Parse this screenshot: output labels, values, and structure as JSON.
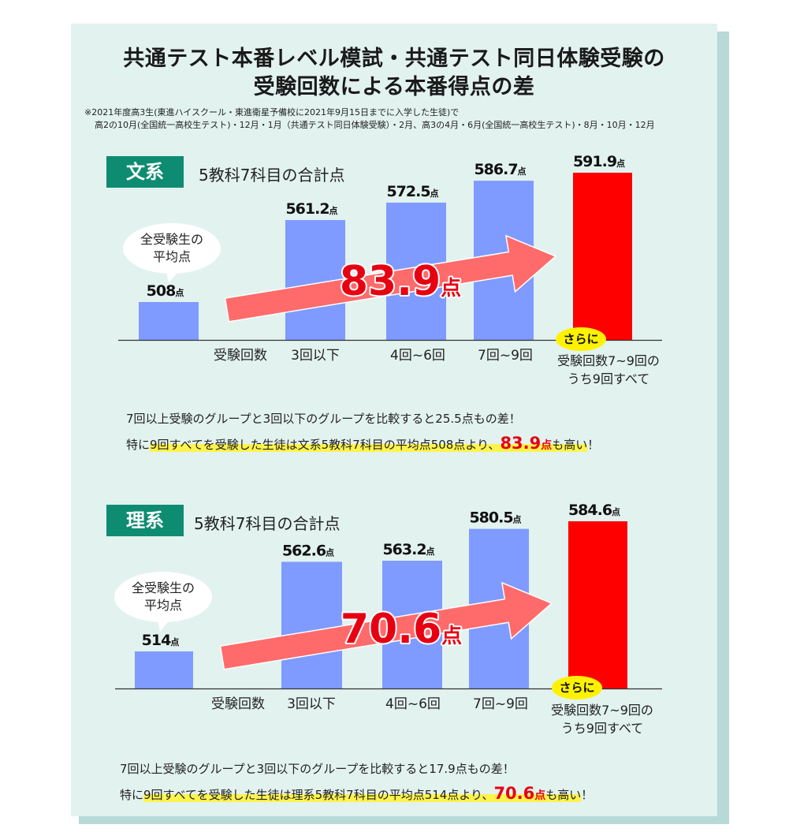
{
  "title": {
    "line1": "共通テスト本番レベル模試・共通テスト同日体験受験の",
    "line2": "受験回数による本番得点の差"
  },
  "note": {
    "line1": "※2021年度高3生(東進ハイスクール・東進衛星予備校に2021年9月15日までに入学した生徒)で",
    "line2": "高2の10月(全国統一高校生テスト)・12月・1月（共通テスト同日体験受験）・2月、高3の4月・6月(全国統一高校生テスト)・8月・10月・12月"
  },
  "sections": [
    {
      "tag": "文系",
      "subtitle": "5教科7科目の合計点",
      "bubble": [
        "全受験生の",
        "平均点"
      ],
      "axis_label": "受験回数",
      "sarani": "さらに",
      "last_label": [
        "受験回数7~9回の",
        "うち9回すべて"
      ],
      "arrow_value": "83.9",
      "unit": "点",
      "summary1": "7回以上受験のグループと3回以下のグループを比較すると25.5点もの差！",
      "summary2": {
        "pre": "特に",
        "hl1": "9回すべてを受験した生徒は文系5教科7科目の平均点508点より、",
        "big": "83.9",
        "small": "点",
        "hl2": "も高い",
        "post": "！"
      }
    },
    {
      "tag": "理系",
      "subtitle": "5教科7科目の合計点",
      "bubble": [
        "全受験生の",
        "平均点"
      ],
      "axis_label": "受験回数",
      "sarani": "さらに",
      "last_label": [
        "受験回数7~9回の",
        "うち9回すべて"
      ],
      "arrow_value": "70.6",
      "unit": "点",
      "summary1": "7回以上受験のグループと3回以下のグループを比較すると17.9点もの差！",
      "summary2": {
        "pre": "特に",
        "hl1": "9回すべてを受験した生徒は理系5教科7科目の平均点514点より、",
        "big": "70.6",
        "small": "点",
        "hl2": "も高い",
        "post": "！"
      }
    }
  ],
  "chart_data": [
    {
      "type": "bar",
      "categories": [
        "",
        "3回以下",
        "4回~6回",
        "7回~9回",
        ""
      ],
      "values": [
        508,
        561.2,
        572.5,
        586.7,
        591.9
      ],
      "value_labels": [
        "508",
        "561.2",
        "572.5",
        "586.7",
        "591.9"
      ],
      "colors": [
        "#7f9bff",
        "#7f9bff",
        "#7f9bff",
        "#7f9bff",
        "#ff0000"
      ],
      "grid": false
    },
    {
      "type": "bar",
      "categories": [
        "",
        "3回以下",
        "4回~6回",
        "7回~9回",
        ""
      ],
      "values": [
        514,
        562.6,
        563.2,
        580.5,
        584.6
      ],
      "value_labels": [
        "514",
        "562.6",
        "563.2",
        "580.5",
        "584.6"
      ],
      "colors": [
        "#7f9bff",
        "#7f9bff",
        "#7f9bff",
        "#7f9bff",
        "#ff0000"
      ],
      "grid": false
    }
  ]
}
